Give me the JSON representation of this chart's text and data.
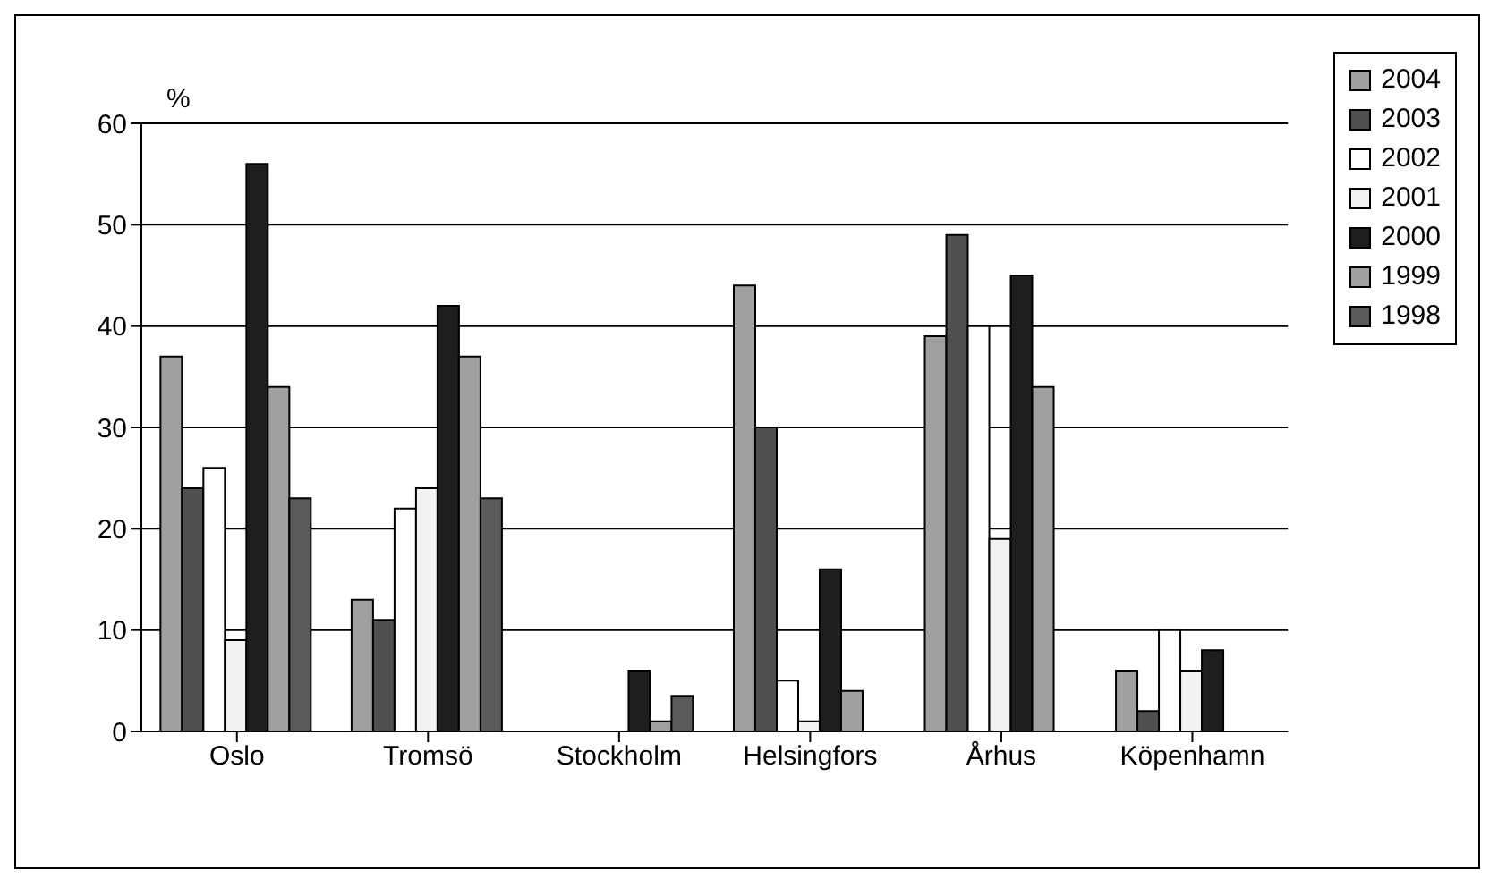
{
  "chart_data": {
    "type": "bar",
    "ylabel": "%",
    "categories": [
      "Oslo",
      "Tromsö",
      "Stockholm",
      "Helsingfors",
      "Århus",
      "Köpenhamn"
    ],
    "series": [
      {
        "name": "2004",
        "color": "#a0a0a0",
        "values": [
          37,
          13,
          0,
          44,
          39,
          6
        ]
      },
      {
        "name": "2003",
        "color": "#505050",
        "values": [
          24,
          11,
          0,
          30,
          49,
          2
        ]
      },
      {
        "name": "2002",
        "color": "#ffffff",
        "values": [
          26,
          22,
          0,
          5,
          40,
          10
        ]
      },
      {
        "name": "2001",
        "color": "#f2f2f2",
        "values": [
          9,
          24,
          0,
          1,
          19,
          6
        ]
      },
      {
        "name": "2000",
        "color": "#1e1e1e",
        "values": [
          56,
          42,
          6,
          16,
          45,
          8
        ]
      },
      {
        "name": "1999",
        "color": "#a0a0a0",
        "values": [
          34,
          37,
          1,
          4,
          34,
          null
        ]
      },
      {
        "name": "1998",
        "color": "#5a5a5a",
        "values": [
          23,
          23,
          3.5,
          null,
          null,
          null
        ]
      }
    ],
    "ylim": [
      0,
      60
    ],
    "yticks": [
      0,
      10,
      20,
      30,
      40,
      50,
      60
    ],
    "grid": "y",
    "legend": "top right"
  }
}
